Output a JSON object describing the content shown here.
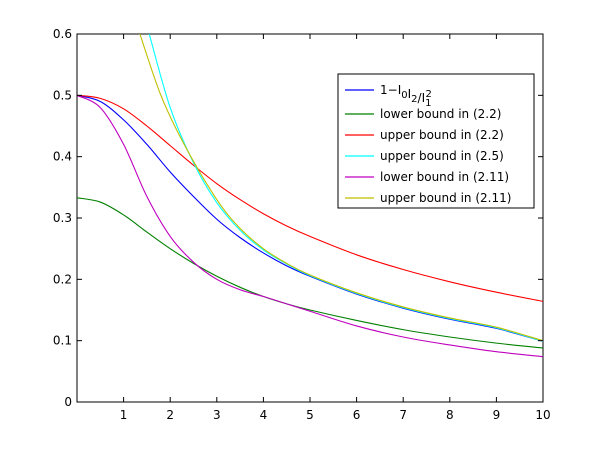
{
  "chart_data": {
    "type": "line",
    "xlim": [
      0,
      10
    ],
    "ylim": [
      0,
      0.6
    ],
    "x_ticks": [
      {
        "value": 1,
        "label": "1"
      },
      {
        "value": 2,
        "label": "2"
      },
      {
        "value": 3,
        "label": "3"
      },
      {
        "value": 4,
        "label": "4"
      },
      {
        "value": 5,
        "label": "5"
      },
      {
        "value": 6,
        "label": "6"
      },
      {
        "value": 7,
        "label": "7"
      },
      {
        "value": 8,
        "label": "8"
      },
      {
        "value": 9,
        "label": "9"
      },
      {
        "value": 10,
        "label": "10"
      }
    ],
    "y_ticks": [
      {
        "value": 0,
        "label": "0"
      },
      {
        "value": 0.1,
        "label": "0.1"
      },
      {
        "value": 0.2,
        "label": "0.2"
      },
      {
        "value": 0.3,
        "label": "0.3"
      },
      {
        "value": 0.4,
        "label": "0.4"
      },
      {
        "value": 0.5,
        "label": "0.5"
      },
      {
        "value": 0.6,
        "label": "0.6"
      }
    ],
    "grid": false,
    "legend_position": "top-right",
    "series": [
      {
        "name": "1−I0I2/I1^2",
        "color": "#0000ff",
        "x": [
          0,
          0.5,
          1,
          1.5,
          2,
          2.5,
          3,
          3.5,
          4,
          4.5,
          5,
          6,
          7,
          8,
          9,
          10
        ],
        "y": [
          0.5,
          0.49,
          0.46,
          0.42,
          0.375,
          0.335,
          0.298,
          0.268,
          0.243,
          0.222,
          0.205,
          0.176,
          0.153,
          0.135,
          0.12,
          0.099
        ]
      },
      {
        "name": "lower bound in (2.2)",
        "color": "#008000",
        "x": [
          0,
          0.5,
          1,
          1.5,
          2,
          2.5,
          3,
          3.5,
          4,
          4.5,
          5,
          6,
          7,
          8,
          9,
          10
        ],
        "y": [
          0.333,
          0.326,
          0.305,
          0.277,
          0.25,
          0.226,
          0.205,
          0.187,
          0.172,
          0.16,
          0.15,
          0.133,
          0.118,
          0.106,
          0.096,
          0.088
        ]
      },
      {
        "name": "upper bound in (2.2)",
        "color": "#ff0000",
        "x": [
          0,
          0.5,
          1,
          1.5,
          2,
          2.5,
          3,
          3.5,
          4,
          4.5,
          5,
          6,
          7,
          8,
          9,
          10
        ],
        "y": [
          0.5,
          0.495,
          0.478,
          0.45,
          0.418,
          0.386,
          0.356,
          0.33,
          0.307,
          0.287,
          0.27,
          0.24,
          0.216,
          0.196,
          0.179,
          0.164
        ]
      },
      {
        "name": "upper bound in (2.5)",
        "color": "#00ffff",
        "x": [
          1.55,
          2,
          2.5,
          3,
          3.5,
          4,
          4.5,
          5,
          6,
          7,
          8,
          9,
          10
        ],
        "y": [
          0.6,
          0.48,
          0.39,
          0.325,
          0.28,
          0.248,
          0.225,
          0.206,
          0.177,
          0.154,
          0.136,
          0.121,
          0.099
        ]
      },
      {
        "name": "lower bound in (2.11)",
        "color": "#bf00bf",
        "x": [
          0,
          0.5,
          1,
          1.5,
          2,
          2.5,
          3,
          3.5,
          4,
          4.5,
          5,
          6,
          7,
          8,
          9,
          10
        ],
        "y": [
          0.5,
          0.48,
          0.42,
          0.335,
          0.27,
          0.228,
          0.2,
          0.183,
          0.172,
          0.16,
          0.148,
          0.124,
          0.106,
          0.093,
          0.082,
          0.074
        ]
      },
      {
        "name": "upper bound in (2.11)",
        "color": "#bfbf00",
        "x": [
          1.35,
          1.8,
          2.3,
          3,
          3.5,
          4,
          4.5,
          5,
          6,
          7,
          8,
          9,
          10
        ],
        "y": [
          0.6,
          0.5,
          0.42,
          0.33,
          0.283,
          0.25,
          0.226,
          0.207,
          0.178,
          0.155,
          0.137,
          0.122,
          0.1
        ]
      }
    ]
  }
}
